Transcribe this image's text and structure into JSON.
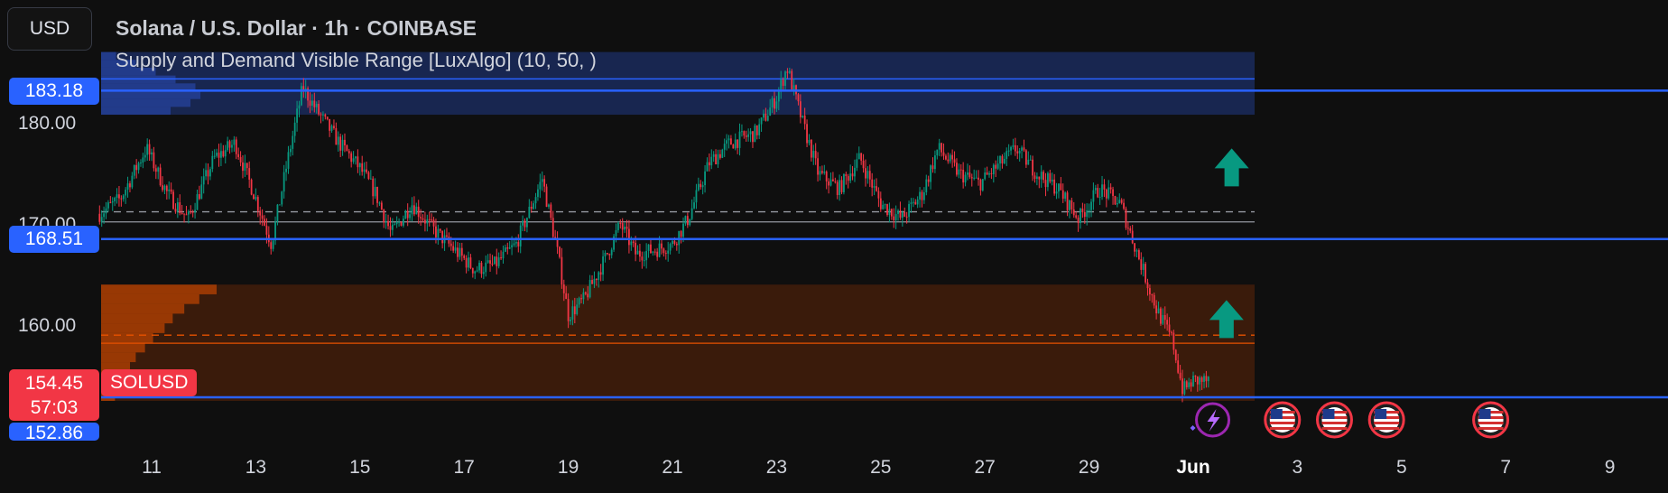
{
  "header": {
    "currency_button": "USD",
    "title": "Solana / U.S. Dollar · 1h · COINBASE",
    "indicator": "Supply and Demand Visible Range [LuxAlgo] (10, 50, )"
  },
  "price_axis": {
    "labels": [
      "180.00",
      "170.00",
      "160.00"
    ],
    "tags": {
      "supply_level": "183.18",
      "mid_level": "168.51",
      "last_price": "154.45",
      "countdown": "57:03",
      "demand_level": "152.86",
      "symbol": "SOLUSD"
    }
  },
  "colors": {
    "background": "#0f0f0f",
    "up_candle": "#089981",
    "down_candle": "#f23645",
    "level_line": "#2962ff",
    "supply_zone": "#1a2a5c",
    "demand_zone": "#3d1c0c",
    "demand_accent": "#e65100",
    "up_arrow": "#089981"
  },
  "chart_data": {
    "type": "candlestick",
    "symbol": "SOLUSD",
    "interval": "1h",
    "y_range": [
      152.5,
      187.5
    ],
    "x_ticks": [
      "11",
      "13",
      "15",
      "17",
      "19",
      "21",
      "23",
      "25",
      "27",
      "29",
      "Jun",
      "3",
      "5",
      "7",
      "9"
    ],
    "x_tick_positions_days": [
      11,
      13,
      15,
      17,
      19,
      21,
      23,
      25,
      27,
      29,
      31,
      33,
      35,
      37,
      39
    ],
    "data_start_day": 10,
    "data_end_day": 31.3,
    "close_path": [
      [
        10.0,
        171.0
      ],
      [
        10.4,
        172.5
      ],
      [
        10.9,
        177.5
      ],
      [
        11.3,
        173.0
      ],
      [
        11.7,
        170.5
      ],
      [
        12.2,
        176.5
      ],
      [
        12.6,
        178.0
      ],
      [
        13.0,
        172.5
      ],
      [
        13.3,
        168.0
      ],
      [
        13.6,
        176.0
      ],
      [
        13.9,
        183.5
      ],
      [
        14.2,
        181.0
      ],
      [
        14.6,
        178.0
      ],
      [
        15.0,
        175.5
      ],
      [
        15.3,
        173.0
      ],
      [
        15.6,
        169.0
      ],
      [
        16.0,
        172.0
      ],
      [
        16.4,
        169.5
      ],
      [
        16.8,
        167.5
      ],
      [
        17.2,
        165.5
      ],
      [
        17.6,
        166.0
      ],
      [
        18.0,
        168.0
      ],
      [
        18.5,
        174.5
      ],
      [
        18.8,
        167.0
      ],
      [
        19.0,
        161.0
      ],
      [
        19.3,
        162.5
      ],
      [
        19.7,
        166.5
      ],
      [
        20.0,
        170.0
      ],
      [
        20.3,
        167.0
      ],
      [
        20.7,
        167.5
      ],
      [
        21.0,
        168.0
      ],
      [
        21.3,
        170.5
      ],
      [
        21.7,
        176.0
      ],
      [
        22.1,
        178.0
      ],
      [
        22.6,
        179.0
      ],
      [
        23.0,
        182.5
      ],
      [
        23.2,
        185.5
      ],
      [
        23.5,
        180.0
      ],
      [
        23.8,
        175.0
      ],
      [
        24.2,
        173.5
      ],
      [
        24.6,
        176.5
      ],
      [
        25.0,
        172.0
      ],
      [
        25.4,
        170.5
      ],
      [
        25.8,
        173.0
      ],
      [
        26.1,
        177.5
      ],
      [
        26.5,
        175.0
      ],
      [
        26.9,
        174.0
      ],
      [
        27.2,
        175.5
      ],
      [
        27.6,
        177.5
      ],
      [
        28.0,
        175.0
      ],
      [
        28.4,
        173.5
      ],
      [
        28.8,
        170.5
      ],
      [
        29.2,
        173.5
      ],
      [
        29.6,
        172.0
      ],
      [
        30.0,
        166.0
      ],
      [
        30.3,
        161.5
      ],
      [
        30.6,
        158.5
      ],
      [
        30.8,
        153.5
      ],
      [
        31.0,
        154.5
      ],
      [
        31.3,
        154.45
      ]
    ],
    "supply_zone": {
      "low": 180.8,
      "high": 187.0,
      "level": 183.18
    },
    "demand_zone": {
      "low": 152.5,
      "high": 164.0,
      "level": 152.86
    },
    "dashed_levels": [
      171.2,
      159.0
    ],
    "solid_levels": [
      170.2,
      158.2
    ],
    "horizontal_lines": [
      183.18,
      168.51,
      152.86
    ],
    "signals": [
      {
        "type": "up-arrow",
        "day": 31.6,
        "price": 175.5
      },
      {
        "type": "up-arrow",
        "day": 31.5,
        "price": 160.5
      }
    ],
    "events": [
      {
        "type": "lightning",
        "day": 31.2
      },
      {
        "type": "us-flag",
        "day": 32.4
      },
      {
        "type": "us-flag",
        "day": 33.4
      },
      {
        "type": "us-flag",
        "day": 34.4
      },
      {
        "type": "us-flag",
        "day": 36.4
      }
    ]
  }
}
